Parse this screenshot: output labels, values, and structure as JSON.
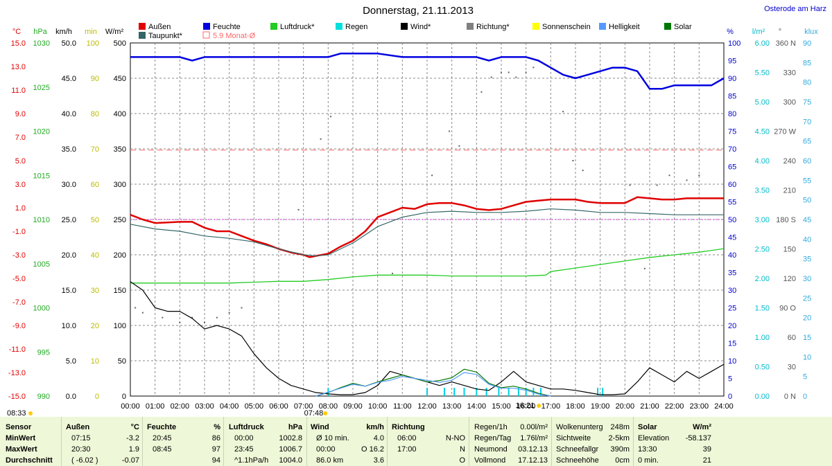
{
  "title": "Donnerstag, 21.11.2013",
  "location": "Osterode am Harz",
  "legend": [
    {
      "label": "Außen",
      "color": "#e00000"
    },
    {
      "label": "Feuchte",
      "color": "#0000e0"
    },
    {
      "label": "Luftdruck*",
      "color": "#22cc22"
    },
    {
      "label": "Regen",
      "color": "#00e0e0"
    },
    {
      "label": "Wind*",
      "color": "#000000"
    },
    {
      "label": "Richtung*",
      "color": "#808080"
    },
    {
      "label": "Sonnenschein",
      "color": "#ffff00"
    },
    {
      "label": "Helligkeit",
      "color": "#5599ff"
    },
    {
      "label": "Solar",
      "color": "#007700"
    },
    {
      "label": "Taupunkt*",
      "color": "#336666"
    },
    {
      "label": "5.9 Monat-Ø",
      "color": "#ff6666"
    }
  ],
  "axis_units": {
    "temp": "°C",
    "pressure": "hPa",
    "wind": "km/h",
    "sunmin": "min",
    "solar": "W/m²",
    "humidity": "%",
    "rain": "l/m²",
    "direction": "°",
    "lux": "klux"
  },
  "axes": {
    "temp": [
      "15.0",
      "13.0",
      "11.0",
      "9.0",
      "7.0",
      "5.0",
      "3.0",
      "1.0",
      "-1.0",
      "-3.0",
      "-5.0",
      "-7.0",
      "-9.0",
      "-11.0",
      "-13.0",
      "-15.0"
    ],
    "pressure": [
      "1030",
      "1025",
      "1020",
      "1015",
      "1010",
      "1005",
      "1000",
      "995",
      "990"
    ],
    "wind": [
      "50.0",
      "45.0",
      "40.0",
      "35.0",
      "30.0",
      "25.0",
      "20.0",
      "15.0",
      "10.0",
      "5.0",
      "0.0"
    ],
    "sunmin": [
      "100",
      "90",
      "80",
      "70",
      "60",
      "50",
      "40",
      "30",
      "20",
      "10",
      "0"
    ],
    "solar": [
      "500",
      "450",
      "400",
      "350",
      "300",
      "250",
      "200",
      "150",
      "100",
      "50",
      "0"
    ],
    "humidity": [
      "100",
      "95",
      "90",
      "85",
      "80",
      "75",
      "70",
      "65",
      "60",
      "55",
      "50",
      "45",
      "40",
      "35",
      "30",
      "25",
      "20",
      "15",
      "10",
      "5",
      "0"
    ],
    "rain": [
      "6.00",
      "5.50",
      "5.00",
      "4.50",
      "4.00",
      "3.50",
      "3.00",
      "2.50",
      "2.00",
      "1.50",
      "1.00",
      "0.50",
      "0.00"
    ],
    "direction": [
      "360 N",
      "330",
      "300",
      "270 W",
      "240",
      "210",
      "180 S",
      "150",
      "120",
      "90 O",
      "60",
      "30",
      "0 N"
    ],
    "lux": [
      "90",
      "85",
      "80",
      "75",
      "70",
      "65",
      "60",
      "55",
      "50",
      "45",
      "40",
      "35",
      "30",
      "25",
      "20",
      "15",
      "10",
      "5",
      "0"
    ],
    "time": [
      "00:00",
      "01:00",
      "02:00",
      "03:00",
      "04:00",
      "05:00",
      "06:00",
      "07:00",
      "08:00",
      "09:00",
      "10:00",
      "11:00",
      "12:00",
      "13:00",
      "14:00",
      "15:00",
      "16:00",
      "17:00",
      "18:00",
      "19:00",
      "20:00",
      "21:00",
      "22:00",
      "23:00",
      "24:00"
    ]
  },
  "markers": {
    "sunrise": "07:48",
    "sunset": "16:21",
    "time_now": "08:33"
  },
  "chart_data": {
    "type": "line",
    "x_unit": "hours",
    "xlim": [
      0,
      24
    ],
    "series": [
      {
        "name": "Außen",
        "axis": "temp",
        "color": "#e00000",
        "x": [
          0,
          0.5,
          1,
          2,
          2.5,
          3,
          3.5,
          4,
          4.5,
          5,
          5.5,
          6,
          6.5,
          7,
          7.25,
          7.5,
          8,
          8.5,
          9,
          9.5,
          10,
          10.5,
          11,
          11.5,
          12,
          12.5,
          13,
          13.5,
          14,
          14.5,
          15,
          15.5,
          16,
          16.5,
          17,
          17.5,
          18,
          18.5,
          19,
          19.5,
          20,
          20.5,
          21,
          21.5,
          22,
          22.5,
          23,
          23.5,
          24
        ],
        "y": [
          0.4,
          0,
          -0.3,
          -0.2,
          -0.2,
          -0.7,
          -1.0,
          -1.0,
          -1.4,
          -1.8,
          -2.1,
          -2.5,
          -2.8,
          -3.0,
          -3.2,
          -3.1,
          -2.9,
          -2.3,
          -1.8,
          -1.0,
          0.2,
          0.6,
          1.0,
          0.9,
          1.3,
          1.4,
          1.4,
          1.2,
          0.9,
          0.8,
          0.9,
          1.2,
          1.5,
          1.6,
          1.7,
          1.7,
          1.7,
          1.5,
          1.4,
          1.4,
          1.4,
          1.9,
          1.8,
          1.7,
          1.7,
          1.8,
          1.8,
          1.8,
          1.8
        ]
      },
      {
        "name": "Taupunkt*",
        "axis": "temp",
        "color": "#336666",
        "x": [
          0,
          1,
          2,
          3,
          4,
          5,
          6,
          7,
          7.5,
          8,
          9,
          10,
          11,
          12,
          13,
          14,
          15,
          16,
          17,
          18,
          19,
          20,
          21,
          22,
          23,
          24
        ],
        "y": [
          -0.4,
          -0.8,
          -1.0,
          -1.4,
          -1.6,
          -1.9,
          -2.5,
          -3.0,
          -3.1,
          -3.0,
          -2.0,
          -0.6,
          0.2,
          0.6,
          0.7,
          0.6,
          0.6,
          0.7,
          0.9,
          0.8,
          0.6,
          0.6,
          0.5,
          0.4,
          0.4,
          0.4
        ]
      },
      {
        "name": "Feuchte",
        "axis": "humidity",
        "color": "#0000e0",
        "x": [
          0,
          0.5,
          1,
          1.5,
          2,
          2.5,
          3,
          3.5,
          4,
          5,
          6,
          7,
          8,
          8.5,
          9,
          10,
          11,
          12,
          13,
          14,
          14.5,
          15,
          15.5,
          16,
          16.5,
          17,
          17.5,
          18,
          18.5,
          19,
          19.5,
          20,
          20.5,
          21,
          21.5,
          22,
          23,
          23.5,
          24
        ],
        "y": [
          96,
          96,
          96,
          96,
          96,
          95,
          96,
          96,
          96,
          96,
          96,
          96,
          96,
          97,
          97,
          97,
          96,
          96,
          96,
          96,
          95,
          96,
          96,
          96,
          95,
          93,
          91,
          90,
          91,
          92,
          93,
          93,
          92,
          87,
          87,
          88,
          88,
          88,
          90
        ]
      },
      {
        "name": "Luftdruck*",
        "axis": "pressure",
        "color": "#22cc22",
        "x": [
          0,
          1,
          2,
          3,
          4,
          5,
          6,
          7,
          8,
          9,
          10,
          11,
          12,
          13,
          14,
          15,
          16,
          16.8,
          17,
          18,
          19,
          20,
          21,
          22,
          23,
          24
        ],
        "y": [
          1002.8,
          1002.8,
          1002.8,
          1002.8,
          1002.8,
          1002.9,
          1003.0,
          1003.0,
          1003.2,
          1003.5,
          1003.7,
          1003.7,
          1003.7,
          1003.6,
          1003.6,
          1003.6,
          1003.6,
          1003.7,
          1004.1,
          1004.5,
          1004.9,
          1005.3,
          1005.7,
          1006.0,
          1006.3,
          1006.7
        ]
      },
      {
        "name": "Wind*",
        "axis": "wind",
        "color": "#000000",
        "x": [
          0,
          0.5,
          1,
          1.5,
          2,
          2.5,
          3,
          3.5,
          4,
          4.5,
          5,
          5.5,
          6,
          6.5,
          7,
          7.5,
          8,
          8.5,
          9,
          9.5,
          10,
          10.5,
          11,
          11.5,
          12,
          12.5,
          13,
          13.5,
          14,
          14.5,
          15,
          15.5,
          16,
          16.5,
          17,
          17.5,
          18,
          18.5,
          19,
          19.5,
          20,
          20.5,
          21,
          21.5,
          22,
          22.5,
          23,
          23.5,
          24
        ],
        "y": [
          16.2,
          15.0,
          12.5,
          12.0,
          12.0,
          11.0,
          9.5,
          10.0,
          9.5,
          8.5,
          6.0,
          4.0,
          2.5,
          1.5,
          1.0,
          0.5,
          0.3,
          0.2,
          0.2,
          0.5,
          1.5,
          3.5,
          3.0,
          2.5,
          2.0,
          1.5,
          2.0,
          1.5,
          1.0,
          0.8,
          2.0,
          3.5,
          2.0,
          1.5,
          1.0,
          1.0,
          0.8,
          0.5,
          0.2,
          0.2,
          0.3,
          2.0,
          4.0,
          3.0,
          2.0,
          3.5,
          2.5,
          3.5,
          4.5
        ]
      },
      {
        "name": "Solar",
        "axis": "solar",
        "color": "#007700",
        "x": [
          7.5,
          8,
          8.5,
          9,
          9.5,
          10,
          10.5,
          11,
          11.5,
          12,
          12.5,
          13,
          13.5,
          14,
          14.5,
          15,
          15.5,
          16,
          16.5,
          17
        ],
        "y": [
          0,
          5,
          12,
          18,
          14,
          20,
          25,
          30,
          25,
          20,
          22,
          26,
          38,
          34,
          18,
          12,
          14,
          10,
          4,
          0
        ]
      },
      {
        "name": "Helligkeit",
        "axis": "lux",
        "color": "#5599ff",
        "x": [
          7.5,
          8,
          8.5,
          9,
          9.5,
          10,
          10.5,
          11,
          11.5,
          12,
          12.5,
          13,
          13.5,
          14,
          14.5,
          15,
          15.5,
          16,
          16.5,
          17
        ],
        "y": [
          0,
          1,
          2,
          3,
          2.5,
          3.5,
          4,
          5,
          4.5,
          4,
          3.5,
          4,
          6,
          5.5,
          3,
          2,
          2,
          1.5,
          0.5,
          0
        ]
      },
      {
        "name": "Monat-Ø",
        "axis": "temp",
        "color": "#ff6666",
        "y": [
          5.9
        ]
      }
    ],
    "direction_points": [
      {
        "x": 0.2,
        "y": 90
      },
      {
        "x": 0.5,
        "y": 85
      },
      {
        "x": 1.3,
        "y": 80
      },
      {
        "x": 2.0,
        "y": 75
      },
      {
        "x": 2.5,
        "y": 80
      },
      {
        "x": 3.0,
        "y": 75
      },
      {
        "x": 3.5,
        "y": 80
      },
      {
        "x": 4.0,
        "y": 85
      },
      {
        "x": 4.5,
        "y": 90
      },
      {
        "x": 6.8,
        "y": 190
      },
      {
        "x": 7.7,
        "y": 262
      },
      {
        "x": 8.1,
        "y": 285
      },
      {
        "x": 10.6,
        "y": 125
      },
      {
        "x": 12.2,
        "y": 225
      },
      {
        "x": 12.9,
        "y": 270
      },
      {
        "x": 13.3,
        "y": 255
      },
      {
        "x": 14.2,
        "y": 310
      },
      {
        "x": 14.6,
        "y": 325
      },
      {
        "x": 15.0,
        "y": 330
      },
      {
        "x": 15.3,
        "y": 330
      },
      {
        "x": 15.6,
        "y": 325
      },
      {
        "x": 16.0,
        "y": 330
      },
      {
        "x": 16.3,
        "y": 335
      },
      {
        "x": 17.5,
        "y": 290
      },
      {
        "x": 17.9,
        "y": 240
      },
      {
        "x": 18.3,
        "y": 230
      },
      {
        "x": 20.2,
        "y": 215
      },
      {
        "x": 20.8,
        "y": 130
      },
      {
        "x": 21.3,
        "y": 215
      },
      {
        "x": 21.8,
        "y": 225
      },
      {
        "x": 22.5,
        "y": 220
      },
      {
        "x": 23.0,
        "y": 225
      }
    ],
    "rain_bars_x": [
      8.0,
      12.0,
      12.7,
      13.1,
      13.5,
      14.0,
      14.4,
      14.9,
      15.3,
      15.7,
      16.0,
      16.3,
      16.6,
      18.9,
      19.1
    ]
  },
  "info_table": {
    "columns": [
      {
        "header": "Sensor",
        "rows": [
          "MinWert",
          "MaxWert",
          "Durchschnitt"
        ]
      },
      {
        "header": "Außen",
        "unit": "°C",
        "rows": [
          [
            "07:15",
            "-3.2"
          ],
          [
            "20:30",
            "1.9"
          ],
          [
            "( -6.02 )",
            "-0.07"
          ]
        ]
      },
      {
        "header": "Feuchte",
        "unit": "%",
        "rows": [
          [
            "20:45",
            "86"
          ],
          [
            "08:45",
            "97"
          ],
          [
            "",
            "94"
          ]
        ]
      },
      {
        "header": "Luftdruck",
        "unit": "hPa",
        "rows": [
          [
            "00:00",
            "1002.8"
          ],
          [
            "23:45",
            "1006.7"
          ],
          [
            "^1.1hPa/h",
            "1004.0"
          ]
        ]
      },
      {
        "header": "Wind",
        "unit": "km/h",
        "rows": [
          [
            "Ø 10 min.",
            "4.0"
          ],
          [
            "00:00",
            "O 16.2"
          ],
          [
            "86.0 km",
            "3.6"
          ]
        ]
      },
      {
        "header": "Richtung",
        "rows": [
          [
            "06:00",
            "N-NO"
          ],
          [
            "17:00",
            "N"
          ],
          [
            "",
            "O"
          ]
        ]
      }
    ],
    "extra": [
      [
        "Regen/1h",
        "0.00l/m²"
      ],
      [
        "Regen/Tag",
        "1.76l/m²"
      ],
      [
        "Neumond",
        "03.12.13"
      ],
      [
        "Vollmond",
        "17.12.13"
      ]
    ],
    "extra2": [
      [
        "Wolkenunterg",
        "248m"
      ],
      [
        "Sichtweite",
        "2-5km"
      ],
      [
        "Schneefallgr",
        "390m"
      ],
      [
        "Schneehöhe",
        "0cm"
      ]
    ],
    "solar": {
      "header": "Solar",
      "unit": "W/m²",
      "rows": [
        [
          "Elevation",
          "-58.137"
        ],
        [
          "13:30",
          "39"
        ],
        [
          "0 min.",
          "21"
        ]
      ]
    }
  }
}
